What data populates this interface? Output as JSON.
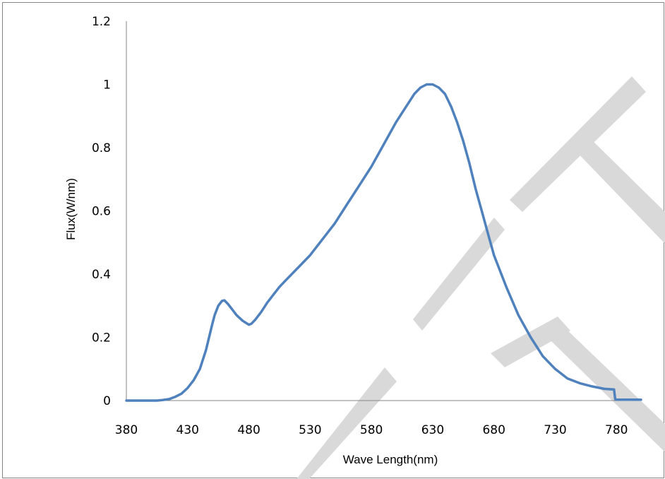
{
  "chart_data": {
    "type": "line",
    "title": "",
    "xlabel": "Wave Length(nm)",
    "ylabel": "Flux(W/nm)",
    "xlim": [
      380,
      800
    ],
    "ylim": [
      0,
      1.2
    ],
    "x_ticks": [
      "380",
      "430",
      "480",
      "530",
      "580",
      "630",
      "680",
      "730",
      "780"
    ],
    "y_ticks": [
      "0",
      "0.2",
      "0.4",
      "0.6",
      "0.8",
      "1",
      "1.2"
    ],
    "grid": false,
    "legend": "none",
    "series": [
      {
        "color": "#4f81bd",
        "x": [
          380,
          405,
          410,
          415,
          420,
          425,
          430,
          435,
          440,
          445,
          450,
          452,
          455,
          458,
          460,
          463,
          466,
          470,
          475,
          480,
          482,
          485,
          490,
          495,
          500,
          505,
          510,
          520,
          530,
          540,
          550,
          560,
          570,
          580,
          590,
          600,
          605,
          610,
          615,
          620,
          625,
          630,
          635,
          640,
          645,
          650,
          655,
          660,
          665,
          670,
          675,
          680,
          690,
          700,
          710,
          720,
          730,
          740,
          750,
          760,
          770,
          778,
          779,
          780,
          800
        ],
        "y": [
          0,
          0,
          0.002,
          0.005,
          0.012,
          0.022,
          0.04,
          0.065,
          0.1,
          0.16,
          0.24,
          0.27,
          0.3,
          0.315,
          0.317,
          0.305,
          0.29,
          0.27,
          0.252,
          0.24,
          0.243,
          0.255,
          0.28,
          0.31,
          0.335,
          0.36,
          0.38,
          0.42,
          0.46,
          0.51,
          0.56,
          0.62,
          0.68,
          0.74,
          0.81,
          0.88,
          0.91,
          0.94,
          0.97,
          0.99,
          1.0,
          1.0,
          0.99,
          0.97,
          0.93,
          0.88,
          0.82,
          0.75,
          0.67,
          0.6,
          0.53,
          0.46,
          0.36,
          0.27,
          0.2,
          0.14,
          0.1,
          0.07,
          0.055,
          0.045,
          0.037,
          0.035,
          0.004,
          0.003,
          0.003
        ]
      }
    ]
  },
  "watermark": {
    "color": "#d9d9d9"
  }
}
